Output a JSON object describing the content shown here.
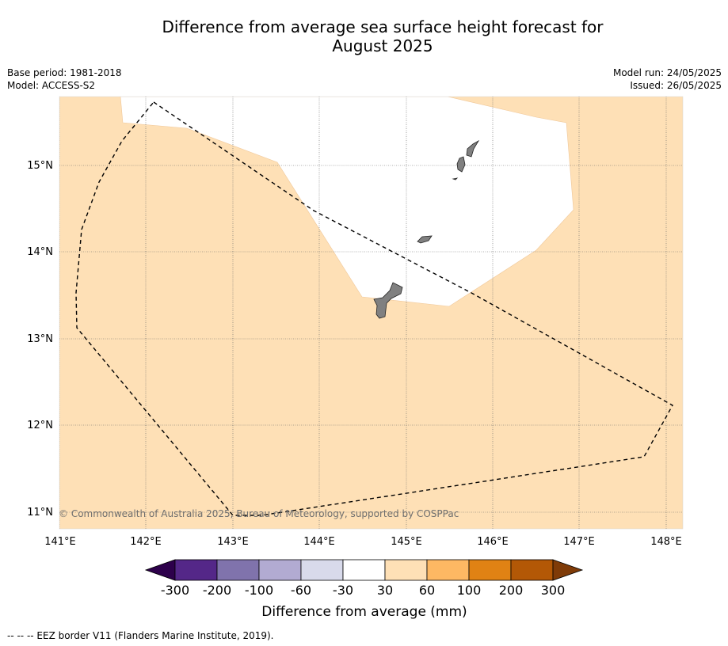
{
  "title_line1": "Difference from average sea surface height forecast for",
  "title_line2": "August 2025",
  "base_period": "Base period: 1981-2018",
  "model": "Model: ACCESS-S2",
  "model_run": "Model run: 24/05/2025",
  "issued": "Issued: 26/05/2025",
  "copyright": "© Commonwealth of Australia 2025, Bureau of Meteorology, supported by COSPPac",
  "lon_labels": [
    "141°E",
    "142°E",
    "143°E",
    "144°E",
    "145°E",
    "146°E",
    "147°E",
    "148°E"
  ],
  "lat_labels": [
    "15°N",
    "14°N",
    "13°N",
    "12°N",
    "11°N"
  ],
  "colorbar": {
    "title": "Difference from average (mm)",
    "ticks": [
      "-300",
      "-200",
      "-100",
      "-60",
      "-30",
      "30",
      "60",
      "100",
      "200",
      "300"
    ],
    "low_extend_color": "#2d004b",
    "high_extend_color": "#7f3b08",
    "colors": [
      "#542788",
      "#8073ac",
      "#b2abd2",
      "#d8daeb",
      "#ffffff",
      "#fee0b6",
      "#fdb863",
      "#e08214",
      "#b35806"
    ]
  },
  "map": {
    "fill_color": "#fee0b6",
    "land_color": "#808080"
  },
  "footnote": "--  --  -- EEZ border V11 (Flanders Marine Institute, 2019)."
}
